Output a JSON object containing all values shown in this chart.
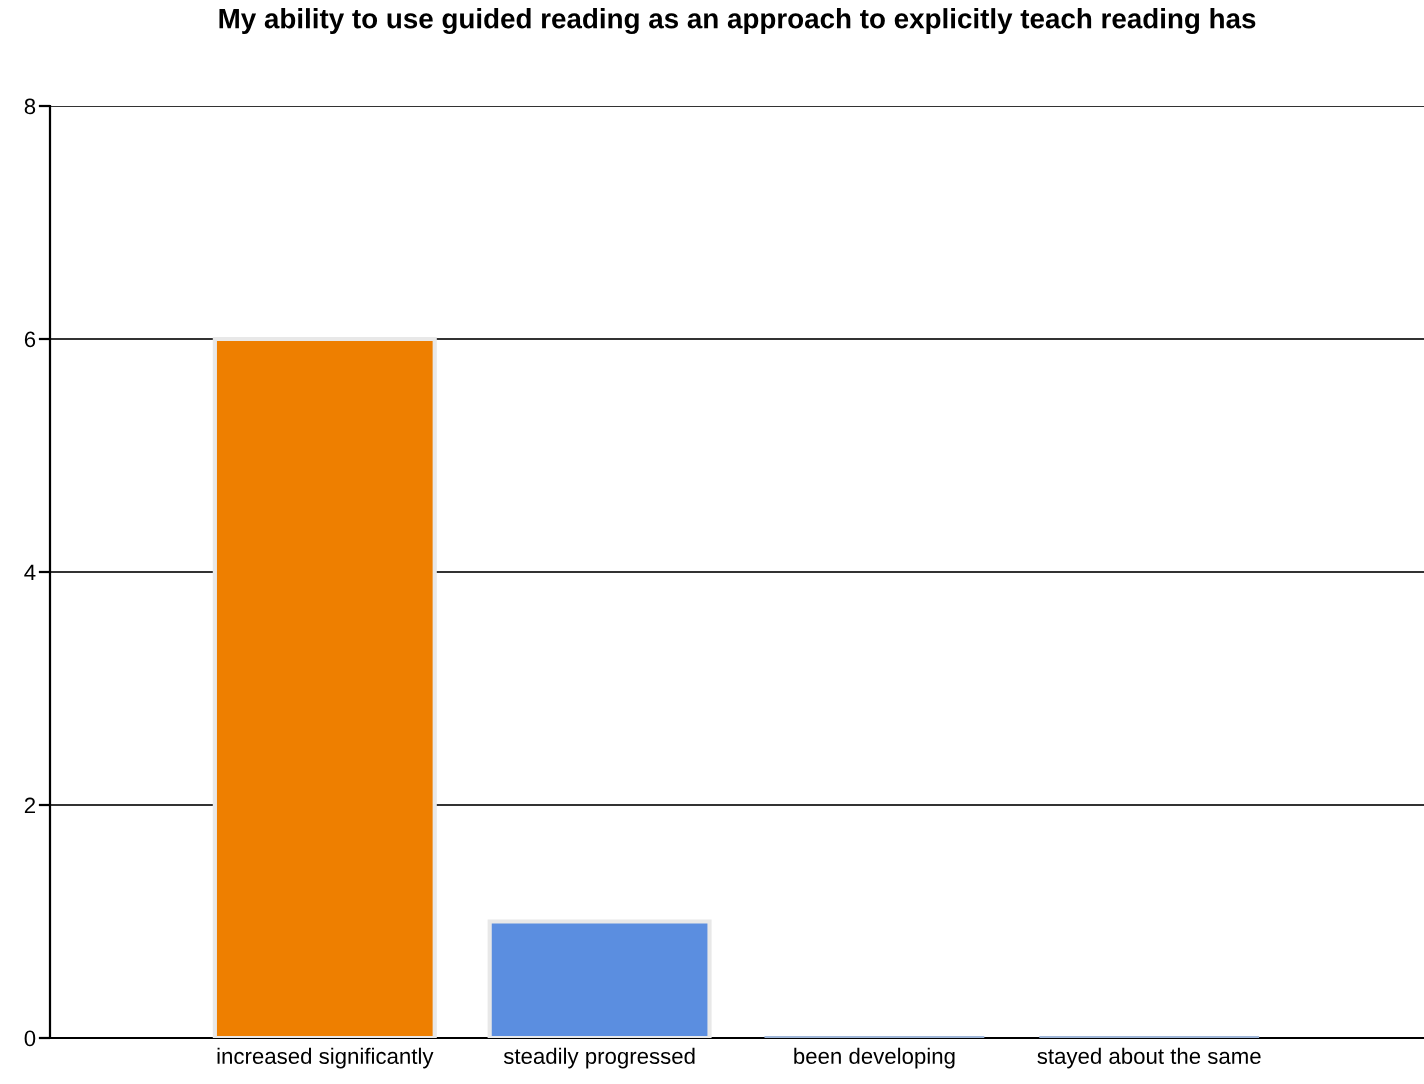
{
  "chart_data": {
    "type": "bar",
    "title": "My ability to use guided reading as an approach to explicitly teach reading has",
    "categories": [
      "increased significantly",
      "steadily progressed",
      "been developing",
      "stayed about the same"
    ],
    "values": [
      6,
      1,
      0,
      0
    ],
    "colors": [
      "#ee7f00",
      "#5b8ee0",
      "#9fb6d8",
      "#9fb6d8"
    ],
    "ylim": [
      0,
      8
    ],
    "yticks": [
      0,
      2,
      4,
      6,
      8
    ],
    "grid": "y"
  }
}
